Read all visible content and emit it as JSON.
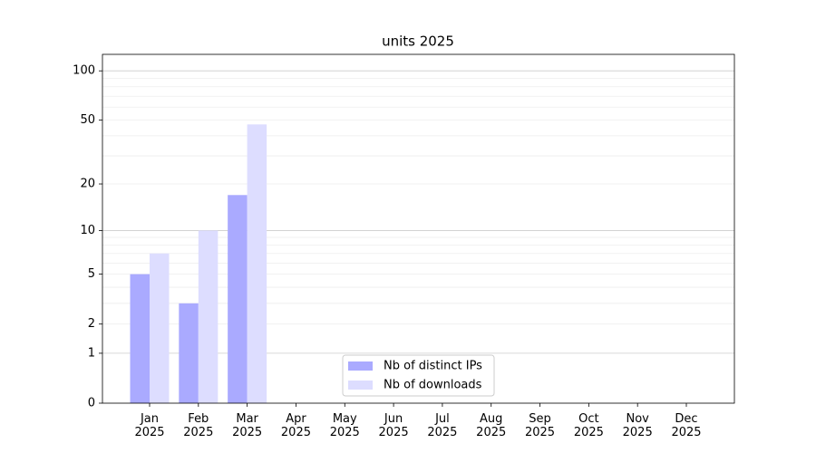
{
  "chart_data": {
    "type": "bar",
    "title": "units 2025",
    "categories": [
      "Jan 2025",
      "Feb 2025",
      "Mar 2025",
      "Apr 2025",
      "May 2025",
      "Jun 2025",
      "Jul 2025",
      "Aug 2025",
      "Sep 2025",
      "Oct 2025",
      "Nov 2025",
      "Dec 2025"
    ],
    "series": [
      {
        "name": "Nb of distinct IPs",
        "color": "#aaaaff",
        "values": [
          5,
          3,
          17,
          0,
          0,
          0,
          0,
          0,
          0,
          0,
          0,
          0
        ]
      },
      {
        "name": "Nb of downloads",
        "color": "#ddddff",
        "values": [
          7,
          10,
          47,
          0,
          0,
          0,
          0,
          0,
          0,
          0,
          0,
          0
        ]
      }
    ],
    "yscale": "log1p",
    "ylim": [
      0,
      126
    ],
    "yticks": [
      0,
      1,
      2,
      5,
      10,
      20,
      50,
      100
    ],
    "yminorticks": [
      3,
      4,
      6,
      7,
      8,
      9,
      30,
      40,
      60,
      70,
      80,
      90
    ],
    "grid": true,
    "legend": "lower center"
  }
}
